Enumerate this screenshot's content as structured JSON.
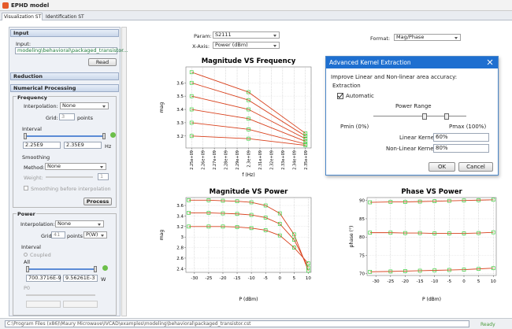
{
  "window": {
    "title": "EPHD model"
  },
  "tabs": [
    "Visualization ST",
    "Identification ST"
  ],
  "left_panel": {
    "input": {
      "header": "Input",
      "label": "Input:",
      "path": "modeling\\behavioral\\packaged_transistor...",
      "button": "Read"
    },
    "reduction": {
      "header": "Reduction"
    },
    "numerical": {
      "header": "Numerical Processing",
      "frequency": {
        "title": "Frequency",
        "interpolation_label": "Interpolation:",
        "interpolation": "None",
        "grid_label": "Grid:",
        "grid": "3",
        "grid_unit": "points",
        "interval": "Interval",
        "min": "2.25E9",
        "max": "2.35E9",
        "unit": "Hz",
        "smoothing": "Smoothing",
        "method_label": "Method:",
        "method": "None",
        "weight_label": "Weight:",
        "weight": "1",
        "smoothing_before": "Smoothing before interpolation",
        "button": "Process"
      },
      "power": {
        "title": "Power",
        "interpolation_label": "Interpolation:",
        "interpolation": "None",
        "grid_label": "Grid:",
        "grid": "41",
        "grid_unit": "points",
        "grid_axis": "P(W)",
        "interval": "Interval",
        "coupled": "Coupled",
        "all": "All",
        "min": "700.3716E-9",
        "max": "9.56261E-3",
        "unit": "W",
        "p0": "P0"
      }
    }
  },
  "controls": {
    "param_label": "Param:",
    "param": "S2111",
    "xaxis_label": "X-Axis:",
    "xaxis": "Power (dBm)",
    "format_label": "Format:",
    "format": "Mag/Phase"
  },
  "chart_data": [
    {
      "type": "line",
      "title": "Magnitude VS Frequency",
      "x_label": "f (Hz)",
      "y_label": "mag",
      "grid": true,
      "color": "#d8401c",
      "marker_color": "#3ccc3c",
      "x": [
        2250000000,
        2300000000,
        2350000000
      ],
      "xlim": [
        2245000000,
        2355000000
      ],
      "xticks": [
        {
          "value": 2250000000,
          "label": "2.25e+09"
        },
        {
          "value": 2260000000,
          "label": "2.26e+09"
        },
        {
          "value": 2270000000,
          "label": "2.27e+09"
        },
        {
          "value": 2280000000,
          "label": "2.28e+09"
        },
        {
          "value": 2290000000,
          "label": "2.29e+09"
        },
        {
          "value": 2300000000,
          "label": "2.3e+09"
        },
        {
          "value": 2310000000,
          "label": "2.31e+09"
        },
        {
          "value": 2320000000,
          "label": "2.32e+09"
        },
        {
          "value": 2330000000,
          "label": "2.33e+09"
        },
        {
          "value": 2340000000,
          "label": "2.34e+09"
        },
        {
          "value": 2350000000,
          "label": "2.35e+09"
        }
      ],
      "ylim": [
        3.11,
        3.72
      ],
      "yticks": [
        3.2,
        3.3,
        3.4,
        3.5,
        3.6
      ],
      "series": [
        {
          "values": [
            3.68,
            3.53,
            3.22
          ]
        },
        {
          "values": [
            3.6,
            3.47,
            3.2
          ]
        },
        {
          "values": [
            3.5,
            3.4,
            3.18
          ]
        },
        {
          "values": [
            3.4,
            3.33,
            3.16
          ]
        },
        {
          "values": [
            3.3,
            3.25,
            3.14
          ]
        },
        {
          "values": [
            3.2,
            3.18,
            3.13
          ]
        }
      ]
    },
    {
      "type": "line",
      "title": "Magnitude VS Power",
      "x_label": "P (dBm)",
      "y_label": "mag",
      "grid": true,
      "color": "#d8401c",
      "marker_color": "#3ccc3c",
      "x": [
        -32,
        -25,
        -20,
        -15,
        -10,
        -5,
        0,
        5,
        10
      ],
      "xlim": [
        -33,
        11
      ],
      "xticks": [
        -30,
        -25,
        -20,
        -15,
        -10,
        -5,
        0,
        5,
        10
      ],
      "ylim": [
        2.33,
        3.75
      ],
      "yticks": [
        2.4,
        2.6,
        2.8,
        3,
        3.2,
        3.4,
        3.6
      ],
      "series": [
        {
          "values": [
            3.7,
            3.7,
            3.69,
            3.68,
            3.66,
            3.6,
            3.45,
            3.05,
            2.36
          ]
        },
        {
          "values": [
            3.46,
            3.46,
            3.45,
            3.44,
            3.42,
            3.37,
            3.25,
            2.95,
            2.42
          ]
        },
        {
          "values": [
            3.2,
            3.2,
            3.2,
            3.19,
            3.17,
            3.13,
            3.03,
            2.8,
            2.5
          ]
        }
      ]
    },
    {
      "type": "line",
      "title": "Phase VS Power",
      "x_label": "P (dBm)",
      "y_label": "phase (°)",
      "grid": true,
      "color": "#d8401c",
      "marker_color": "#3ccc3c",
      "x": [
        -32,
        -25,
        -20,
        -15,
        -10,
        -5,
        0,
        5,
        10
      ],
      "xlim": [
        -33,
        11
      ],
      "xticks": [
        -30,
        -25,
        -20,
        -15,
        -10,
        -5,
        0,
        5,
        10
      ],
      "ylim": [
        69.5,
        90.8
      ],
      "yticks": [
        70,
        75,
        80,
        85,
        90
      ],
      "series": [
        {
          "values": [
            89.5,
            89.6,
            89.6,
            89.7,
            89.8,
            89.9,
            90,
            90.1,
            90.2
          ]
        },
        {
          "values": [
            81.2,
            81.2,
            81.1,
            81.1,
            81,
            81,
            81,
            81.1,
            81.3
          ]
        },
        {
          "values": [
            70.5,
            70.6,
            70.7,
            70.8,
            70.9,
            71,
            71.1,
            71.3,
            71.5
          ]
        }
      ]
    }
  ],
  "dialog": {
    "title": "Advanced Kernel Extraction",
    "prompt": "Improve Linear and Non-linear area accuracy:",
    "group": "Extraction",
    "automatic": "Automatic",
    "power_range": "Power Range",
    "pmin": "Pmin (0%)",
    "pmax": "Pmax (100%)",
    "linear_label": "Linear Kernel:",
    "linear": "60%",
    "nonlinear_label": "Non-Linear Kernel:",
    "nonlinear": "80%",
    "ok": "OK",
    "cancel": "Cancel"
  },
  "status": {
    "path": "C:\\Program Files (x86)\\Maury Microwave\\IVCAD\\examples\\modeling\\behavioral\\packaged_transistor.cst",
    "state": "Ready"
  }
}
